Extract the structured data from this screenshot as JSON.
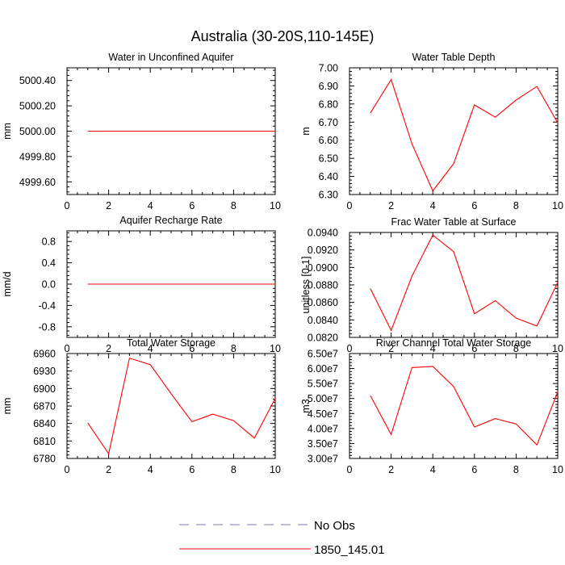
{
  "title": "Australia (30-20S,110-145E)",
  "legend": {
    "placement": "bottom",
    "entries": [
      {
        "label": "No Obs",
        "color": "#7a7ab8",
        "style": "dashed"
      },
      {
        "label": "1850_145.01",
        "color": "#ff0000",
        "style": "solid"
      }
    ]
  },
  "chart_data": [
    {
      "type": "line",
      "title": "Water in Unconfined Aquifer",
      "xlabel": "",
      "ylabel": "mm",
      "xlim": [
        0,
        10
      ],
      "ylim": [
        4999.5,
        5000.5
      ],
      "xticks": [
        0,
        2,
        4,
        6,
        8,
        10
      ],
      "yticks": [
        4999.6,
        4999.8,
        5000.0,
        5000.2,
        5000.4
      ],
      "ytick_labels": [
        "4999.60",
        "4999.80",
        "5000.00",
        "5000.20",
        "5000.40"
      ],
      "grid": false,
      "series": [
        {
          "name": "1850_145.01",
          "color": "#ff0000",
          "x": [
            1,
            2,
            3,
            4,
            5,
            6,
            7,
            8,
            9,
            10
          ],
          "values": [
            5000,
            5000,
            5000,
            5000,
            5000,
            5000,
            5000,
            5000,
            5000,
            5000
          ]
        }
      ]
    },
    {
      "type": "line",
      "title": "Water Table Depth",
      "xlabel": "",
      "ylabel": "m",
      "xlim": [
        0,
        10
      ],
      "ylim": [
        6.3,
        7.0
      ],
      "xticks": [
        0,
        2,
        4,
        6,
        8,
        10
      ],
      "yticks": [
        6.3,
        6.4,
        6.5,
        6.6,
        6.7,
        6.8,
        6.9,
        7.0
      ],
      "ytick_labels": [
        "6.30",
        "6.40",
        "6.50",
        "6.60",
        "6.70",
        "6.80",
        "6.90",
        "7.00"
      ],
      "grid": false,
      "series": [
        {
          "name": "1850_145.01",
          "color": "#ff0000",
          "x": [
            1,
            2,
            3,
            4,
            5,
            6,
            7,
            8,
            9,
            10
          ],
          "values": [
            6.75,
            6.935,
            6.58,
            6.32,
            6.47,
            6.795,
            6.727,
            6.822,
            6.897,
            6.695
          ]
        }
      ]
    },
    {
      "type": "line",
      "title": "Aquifer Recharge Rate",
      "xlabel": "",
      "ylabel": "mm/d",
      "xlim": [
        0,
        10
      ],
      "ylim": [
        -1.0,
        1.0
      ],
      "xticks": [
        0,
        2,
        4,
        6,
        8,
        10
      ],
      "yticks": [
        -0.8,
        -0.4,
        0.0,
        0.4,
        0.8
      ],
      "ytick_labels": [
        "-0.8",
        "-0.4",
        "0.0",
        "0.4",
        "0.8"
      ],
      "grid": false,
      "series": [
        {
          "name": "1850_145.01",
          "color": "#ff0000",
          "x": [
            1,
            2,
            3,
            4,
            5,
            6,
            7,
            8,
            9,
            10
          ],
          "values": [
            0,
            0,
            0,
            0,
            0,
            0,
            0,
            0,
            0,
            0
          ]
        }
      ]
    },
    {
      "type": "line",
      "title": "Frac Water Table at Surface",
      "xlabel": "",
      "ylabel": "unitless [0-1]",
      "xlim": [
        0,
        10
      ],
      "ylim": [
        0.082,
        0.094
      ],
      "xticks": [
        0,
        2,
        4,
        6,
        8,
        10
      ],
      "yticks": [
        0.082,
        0.084,
        0.086,
        0.088,
        0.09,
        0.092,
        0.094
      ],
      "ytick_labels": [
        "0.0820",
        "0.0840",
        "0.0860",
        "0.0880",
        "0.0900",
        "0.0920",
        "0.0940"
      ],
      "grid": false,
      "series": [
        {
          "name": "1850_145.01",
          "color": "#ff0000",
          "x": [
            1,
            2,
            3,
            4,
            5,
            6,
            7,
            8,
            9,
            10
          ],
          "values": [
            0.0876,
            0.0828,
            0.089,
            0.0937,
            0.0918,
            0.0847,
            0.0862,
            0.0842,
            0.0833,
            0.0883
          ]
        }
      ]
    },
    {
      "type": "line",
      "title": "Total Water Storage",
      "xlabel": "",
      "ylabel": "mm",
      "xlim": [
        0,
        10
      ],
      "ylim": [
        6780,
        6960
      ],
      "xticks": [
        0,
        2,
        4,
        6,
        8,
        10
      ],
      "yticks": [
        6780,
        6810,
        6840,
        6870,
        6900,
        6930,
        6960
      ],
      "ytick_labels": [
        "6780",
        "6810",
        "6840",
        "6870",
        "6900",
        "6930",
        "6960"
      ],
      "grid": false,
      "series": [
        {
          "name": "1850_145.01",
          "color": "#ff0000",
          "x": [
            1,
            2,
            3,
            4,
            5,
            6,
            7,
            8,
            9,
            10
          ],
          "values": [
            6841,
            6788,
            6952,
            6941,
            6891,
            6843,
            6856,
            6845,
            6815,
            6883
          ]
        }
      ]
    },
    {
      "type": "line",
      "title": "River Channel Total Water Storage",
      "xlabel": "",
      "ylabel": "m3",
      "xlim": [
        0,
        10
      ],
      "ylim": [
        30000000.0,
        65000000.0
      ],
      "xticks": [
        0,
        2,
        4,
        6,
        8,
        10
      ],
      "yticks": [
        30000000.0,
        35000000.0,
        40000000.0,
        45000000.0,
        50000000.0,
        55000000.0,
        60000000.0,
        65000000.0
      ],
      "ytick_labels": [
        "3.00e7",
        "3.50e7",
        "4.00e7",
        "4.50e7",
        "5.00e7",
        "5.50e7",
        "6.00e7",
        "6.50e7"
      ],
      "grid": false,
      "series": [
        {
          "name": "1850_145.01",
          "color": "#ff0000",
          "x": [
            1,
            2,
            3,
            4,
            5,
            6,
            7,
            8,
            9,
            10
          ],
          "values": [
            51000000.0,
            38000000.0,
            60300000.0,
            60700000.0,
            54000000.0,
            40500000.0,
            43300000.0,
            41500000.0,
            34500000.0,
            52200000.0
          ]
        }
      ]
    }
  ]
}
